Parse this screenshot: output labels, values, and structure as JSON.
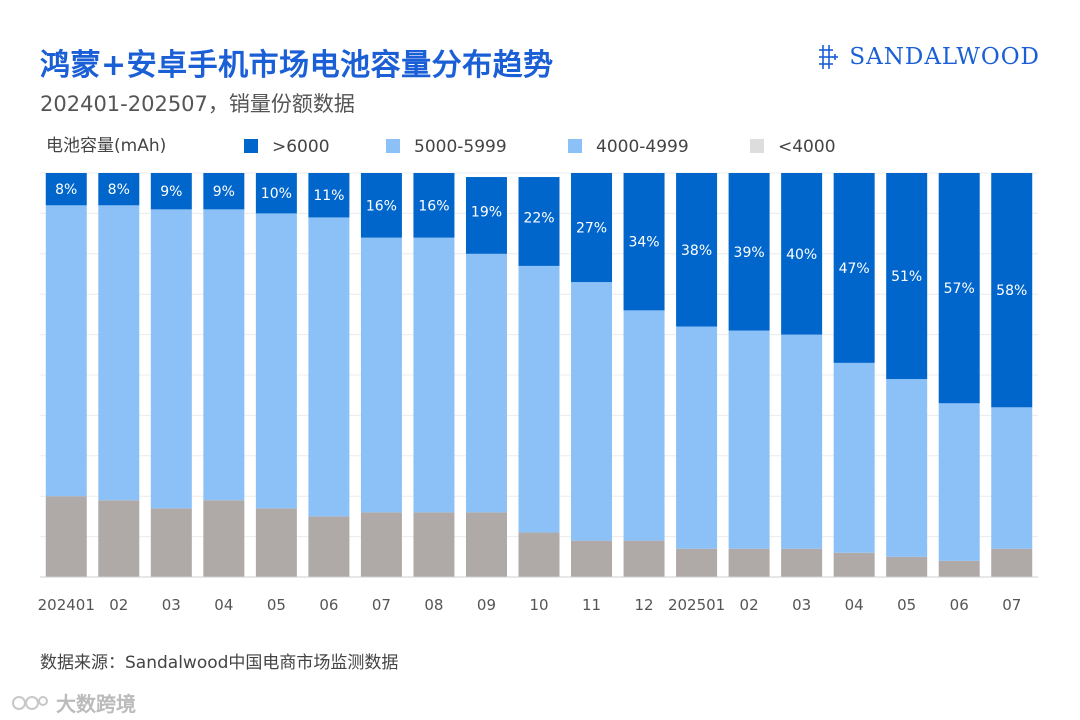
{
  "header": {
    "title": "鸿蒙+安卓手机市场电池容量分布趋势",
    "subtitle": "202401-202507，销量份额数据",
    "brand": "SANDALWOOD"
  },
  "footer": {
    "source": "数据来源：Sandalwood中国电商市场监测数据",
    "watermark": "大数跨境"
  },
  "colors": {
    "title": "#1a5fd6",
    "gt6000": "#0066cc",
    "s5000": "#8cc1f7",
    "s4000": "#8cc1f7",
    "lt4000": "#afa9a8",
    "legend_lt4000": "#dddddd"
  },
  "chart_data": {
    "type": "bar",
    "stacked": true,
    "normalized_percent": true,
    "title": "鸿蒙+安卓手机市场电池容量分布趋势",
    "legend_title": "电池容量(mAh)",
    "legend_position": "top",
    "categories": [
      "202401",
      "02",
      "03",
      "04",
      "05",
      "06",
      "07",
      "08",
      "09",
      "10",
      "11",
      "12",
      "202501",
      "02",
      "03",
      "04",
      "05",
      "06",
      "07"
    ],
    "series": [
      {
        "name": ">6000",
        "color_key": "gt6000",
        "values": [
          8,
          8,
          9,
          9,
          10,
          11,
          16,
          16,
          19,
          22,
          27,
          34,
          38,
          39,
          40,
          47,
          51,
          57,
          58
        ],
        "labels": [
          "8%",
          "8%",
          "9%",
          "9%",
          "10%",
          "11%",
          "16%",
          "16%",
          "19%",
          "22%",
          "27%",
          "34%",
          "38%",
          "39%",
          "40%",
          "47%",
          "51%",
          "57%",
          "58%"
        ]
      },
      {
        "name": "5000-5999",
        "color_key": "s5000",
        "values": [
          72,
          73,
          74,
          72,
          73,
          74,
          68,
          68,
          64,
          66,
          64,
          57,
          55,
          54,
          53,
          47,
          44,
          39,
          35
        ]
      },
      {
        "name": "4000-4999",
        "color_key": "s4000",
        "values": [
          0,
          0,
          0,
          0,
          0,
          0,
          0,
          0,
          0,
          0,
          0,
          0,
          0,
          0,
          0,
          0,
          0,
          0,
          0
        ]
      },
      {
        "name": "<4000",
        "color_key": "lt4000",
        "values": [
          20,
          19,
          17,
          19,
          17,
          15,
          16,
          16,
          16,
          11,
          9,
          9,
          7,
          7,
          7,
          6,
          5,
          4,
          7
        ]
      }
    ],
    "ylim": [
      0,
      100
    ],
    "xlabel": "",
    "ylabel": ""
  }
}
